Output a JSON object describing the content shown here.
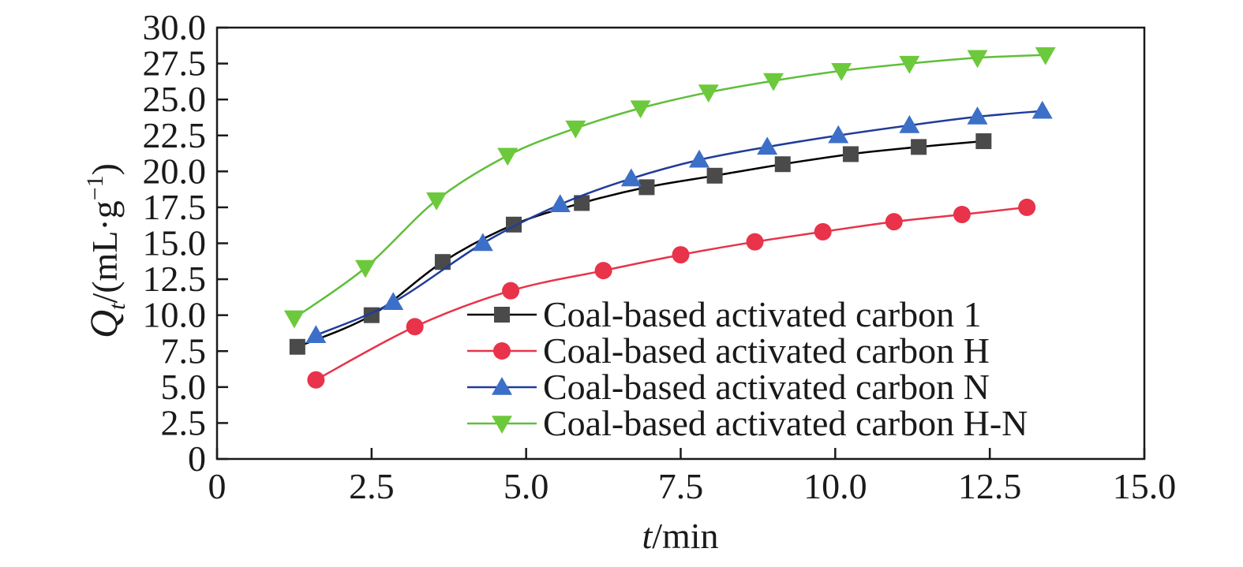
{
  "chart_data": {
    "type": "line",
    "xlabel": "t/min",
    "ylabel": "Q_t/(mL·g^-1)",
    "xlim": [
      0,
      15
    ],
    "ylim": [
      0,
      30
    ],
    "xticks": [
      "0",
      "2.5",
      "5.0",
      "7.5",
      "10.0",
      "12.5",
      "15.0"
    ],
    "yticks": [
      "0",
      "2.5",
      "5.0",
      "7.5",
      "10.0",
      "12.5",
      "15.0",
      "17.5",
      "20.0",
      "22.5",
      "25.0",
      "27.5",
      "30.0"
    ],
    "grid": false,
    "legend_position": "bottom-right",
    "series": [
      {
        "name": "Coal-based activated carbon 1",
        "color": "#000000",
        "marker_color": "#4a4a4a",
        "marker": "square",
        "x": [
          1.3,
          2.5,
          3.65,
          4.8,
          5.9,
          6.95,
          8.05,
          9.15,
          10.25,
          11.35,
          12.4
        ],
        "y": [
          7.8,
          10.0,
          13.7,
          16.3,
          17.8,
          18.9,
          19.7,
          20.5,
          21.2,
          21.7,
          22.1
        ]
      },
      {
        "name": "Coal-based activated carbon H",
        "color": "#e8334a",
        "marker_color": "#e8334a",
        "marker": "circle",
        "x": [
          1.6,
          3.2,
          4.75,
          6.25,
          7.5,
          8.7,
          9.8,
          10.95,
          12.05,
          13.1
        ],
        "y": [
          5.5,
          9.2,
          11.7,
          13.1,
          14.2,
          15.1,
          15.8,
          16.5,
          17.0,
          17.5
        ]
      },
      {
        "name": "Coal-based activated carbon N",
        "color": "#1f3d99",
        "marker_color": "#3c6fc8",
        "marker": "triangle-up",
        "x": [
          1.6,
          2.85,
          4.3,
          5.55,
          6.7,
          7.8,
          8.9,
          10.05,
          11.2,
          12.3,
          13.35
        ],
        "y": [
          8.6,
          10.9,
          15.0,
          17.7,
          19.5,
          20.8,
          21.7,
          22.5,
          23.2,
          23.8,
          24.2
        ]
      },
      {
        "name": "Coal-based activated carbon H-N",
        "color": "#5fbf3a",
        "marker_color": "#6cc93b",
        "marker": "triangle-down",
        "x": [
          1.25,
          2.4,
          3.55,
          4.7,
          5.8,
          6.85,
          7.95,
          9.0,
          10.1,
          11.2,
          12.3,
          13.4
        ],
        "y": [
          9.8,
          13.3,
          18.0,
          21.1,
          23.0,
          24.4,
          25.5,
          26.3,
          27.0,
          27.5,
          27.9,
          28.1
        ]
      }
    ]
  }
}
